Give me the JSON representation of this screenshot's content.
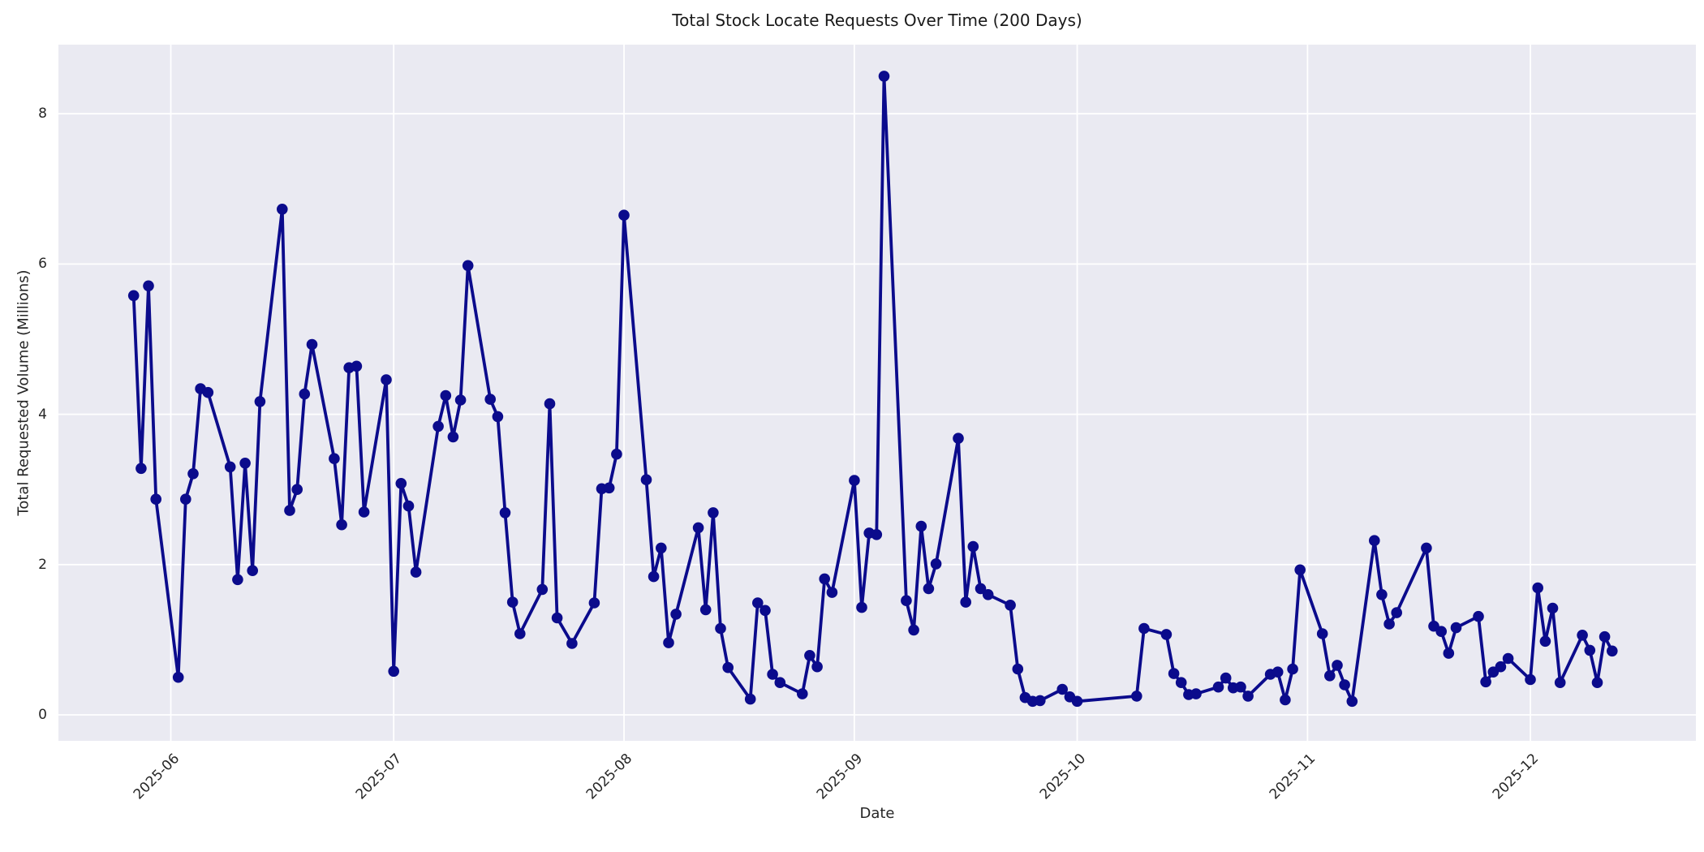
{
  "chart_data": {
    "type": "line",
    "title": "Total Stock Locate Requests Over Time (200 Days)",
    "xlabel": "Date",
    "ylabel": "Total Requested Volume (Millions)",
    "x_tick_labels": [
      "2025-06",
      "2025-07",
      "2025-08",
      "2025-09",
      "2025-10",
      "2025-11",
      "2025-12"
    ],
    "y_ticks": [
      0,
      2,
      4,
      6,
      8
    ],
    "ylim": [
      -0.35,
      8.92
    ],
    "x_range": [
      "2025-05-27",
      "2025-12-12"
    ],
    "grid": true,
    "legend": false,
    "series": [
      {
        "name": "total-stock-locate-requests",
        "dates": [
          "2025-05-27",
          "2025-05-28",
          "2025-05-29",
          "2025-05-30",
          "2025-06-02",
          "2025-06-03",
          "2025-06-04",
          "2025-06-05",
          "2025-06-06",
          "2025-06-09",
          "2025-06-10",
          "2025-06-11",
          "2025-06-12",
          "2025-06-13",
          "2025-06-16",
          "2025-06-17",
          "2025-06-18",
          "2025-06-19",
          "2025-06-20",
          "2025-06-23",
          "2025-06-24",
          "2025-06-25",
          "2025-06-26",
          "2025-06-27",
          "2025-06-30",
          "2025-07-01",
          "2025-07-02",
          "2025-07-03",
          "2025-07-04",
          "2025-07-07",
          "2025-07-08",
          "2025-07-09",
          "2025-07-10",
          "2025-07-11",
          "2025-07-14",
          "2025-07-15",
          "2025-07-16",
          "2025-07-17",
          "2025-07-18",
          "2025-07-21",
          "2025-07-22",
          "2025-07-23",
          "2025-07-25",
          "2025-07-28",
          "2025-07-29",
          "2025-07-30",
          "2025-07-31",
          "2025-08-01",
          "2025-08-04",
          "2025-08-05",
          "2025-08-06",
          "2025-08-07",
          "2025-08-08",
          "2025-08-11",
          "2025-08-12",
          "2025-08-13",
          "2025-08-14",
          "2025-08-15",
          "2025-08-18",
          "2025-08-19",
          "2025-08-20",
          "2025-08-21",
          "2025-08-22",
          "2025-08-25",
          "2025-08-26",
          "2025-08-27",
          "2025-08-28",
          "2025-08-29",
          "2025-09-01",
          "2025-09-02",
          "2025-09-03",
          "2025-09-04",
          "2025-09-05",
          "2025-09-08",
          "2025-09-09",
          "2025-09-10",
          "2025-09-11",
          "2025-09-12",
          "2025-09-15",
          "2025-09-16",
          "2025-09-17",
          "2025-09-18",
          "2025-09-19",
          "2025-09-22",
          "2025-09-23",
          "2025-09-24",
          "2025-09-25",
          "2025-09-26",
          "2025-09-29",
          "2025-09-30",
          "2025-10-01",
          "2025-10-09",
          "2025-10-10",
          "2025-10-13",
          "2025-10-14",
          "2025-10-15",
          "2025-10-16",
          "2025-10-17",
          "2025-10-20",
          "2025-10-21",
          "2025-10-22",
          "2025-10-23",
          "2025-10-24",
          "2025-10-27",
          "2025-10-28",
          "2025-10-29",
          "2025-10-30",
          "2025-10-31",
          "2025-11-03",
          "2025-11-04",
          "2025-11-05",
          "2025-11-06",
          "2025-11-07",
          "2025-11-10",
          "2025-11-11",
          "2025-11-12",
          "2025-11-13",
          "2025-11-17",
          "2025-11-18",
          "2025-11-19",
          "2025-11-20",
          "2025-11-21",
          "2025-11-24",
          "2025-11-25",
          "2025-11-26",
          "2025-11-27",
          "2025-11-28",
          "2025-12-01",
          "2025-12-02",
          "2025-12-03",
          "2025-12-04",
          "2025-12-05",
          "2025-12-08",
          "2025-12-09",
          "2025-12-10",
          "2025-12-11",
          "2025-12-12"
        ],
        "values": [
          5.58,
          3.28,
          5.71,
          2.87,
          0.5,
          2.87,
          3.21,
          4.34,
          4.29,
          3.3,
          1.8,
          3.35,
          1.92,
          4.17,
          6.73,
          2.72,
          3.0,
          4.27,
          4.93,
          3.41,
          2.53,
          4.62,
          4.64,
          2.7,
          4.46,
          0.58,
          3.08,
          2.78,
          1.9,
          3.84,
          4.25,
          3.7,
          4.19,
          5.98,
          4.2,
          3.97,
          2.69,
          1.5,
          1.08,
          1.67,
          4.14,
          1.29,
          0.95,
          1.49,
          3.01,
          3.02,
          3.47,
          6.65,
          3.13,
          1.84,
          2.22,
          0.96,
          1.34,
          2.49,
          1.4,
          2.69,
          1.15,
          0.63,
          0.21,
          1.49,
          1.39,
          0.54,
          0.43,
          0.28,
          0.79,
          0.64,
          1.81,
          1.63,
          3.12,
          1.43,
          2.42,
          2.4,
          8.5,
          1.52,
          1.13,
          2.51,
          1.68,
          2.01,
          3.68,
          1.5,
          2.24,
          1.68,
          1.6,
          1.46,
          0.61,
          0.23,
          0.18,
          0.19,
          0.34,
          0.24,
          0.18,
          0.25,
          1.15,
          1.07,
          0.55,
          0.43,
          0.27,
          0.28,
          0.37,
          0.49,
          0.36,
          0.37,
          0.25,
          0.54,
          0.57,
          0.2,
          0.61,
          1.93,
          1.08,
          0.52,
          0.66,
          0.4,
          0.18,
          2.32,
          1.6,
          1.21,
          1.36,
          2.22,
          1.18,
          1.11,
          0.82,
          1.16,
          1.31,
          0.44,
          0.57,
          0.64,
          0.75,
          0.47,
          1.69,
          0.98,
          1.42,
          0.43,
          1.06,
          0.86,
          0.43,
          1.04,
          0.85
        ]
      }
    ]
  },
  "style": {
    "line_color": "#0b0b8c",
    "marker_color": "#0b0b8c",
    "plot_bg": "#eaeaf2",
    "grid_color": "#ffffff",
    "text_color": "#262626",
    "title_color": "#1a1a1a",
    "figure_bg": "#ffffff"
  }
}
